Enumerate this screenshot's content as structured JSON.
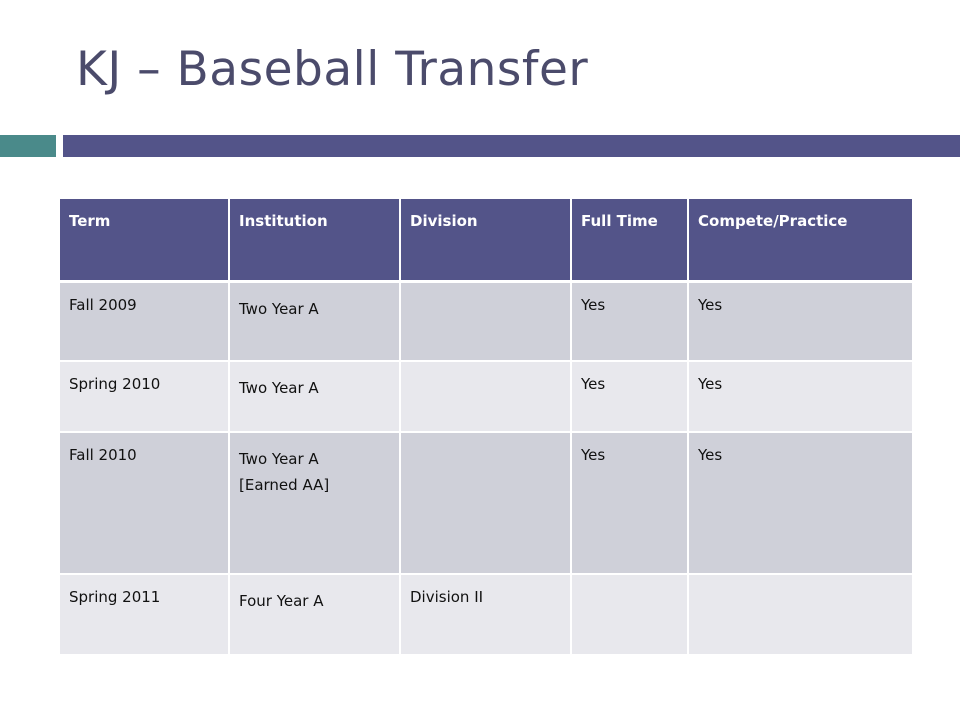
{
  "slide": {
    "title": "KJ – Baseball Transfer"
  },
  "colors": {
    "title_text": "#4b4b6b",
    "accent_bar_left": "#4a8a8a",
    "accent_bar_right": "#535489",
    "table_header_bg": "#535489",
    "row_band_dark": "#cfd0d9",
    "row_band_light": "#e8e8ed"
  },
  "table": {
    "headers": [
      "Term",
      "Institution",
      "Division",
      "Full Time",
      "Compete/Practice"
    ],
    "rows": [
      {
        "term": "Fall 2009",
        "institution": [
          "Two Year A"
        ],
        "division": "",
        "full_time": "Yes",
        "compete_practice": "Yes"
      },
      {
        "term": "Spring 2010",
        "institution": [
          "Two Year A"
        ],
        "division": "",
        "full_time": "Yes",
        "compete_practice": "Yes"
      },
      {
        "term": "Fall 2010",
        "institution": [
          "Two Year A",
          "[Earned AA]"
        ],
        "division": "",
        "full_time": "Yes",
        "compete_practice": "Yes"
      },
      {
        "term": "Spring 2011",
        "institution": [
          "Four Year A"
        ],
        "division": "Division II",
        "full_time": "",
        "compete_practice": ""
      }
    ]
  }
}
